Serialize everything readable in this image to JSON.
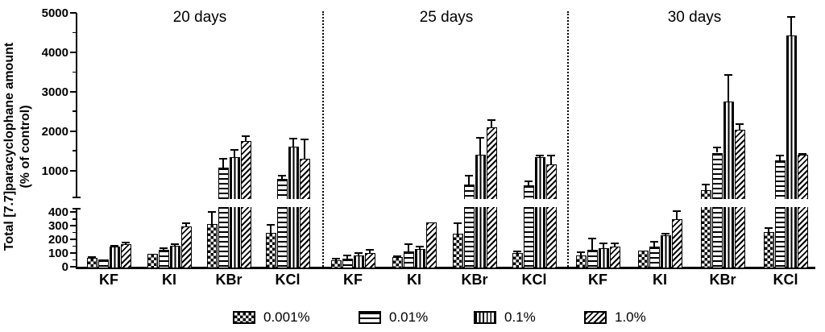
{
  "chart_data": {
    "type": "bar",
    "title": "",
    "ylabel_line1": "Total [7.7]paracyclophane amount",
    "ylabel_line2": "(% of control)",
    "axis": {
      "broken": true,
      "lower_segment_range": [
        0,
        430
      ],
      "upper_segment_range": [
        1000,
        5000
      ],
      "lower_ticks": [
        0,
        100,
        200,
        300,
        400
      ],
      "upper_ticks": [
        1000,
        2000,
        3000,
        4000,
        5000
      ],
      "lower_minor_ticks": [
        50,
        150,
        250,
        350
      ],
      "upper_minor_ticks": [
        1500,
        2500,
        3500,
        4500
      ]
    },
    "series_labels": [
      "0.001%",
      "0.01%",
      "0.1%",
      "1.0%"
    ],
    "series_patterns": [
      "checkerboard",
      "horizontal-lines",
      "vertical-lines",
      "diagonal-lines"
    ],
    "legend_position": "bottom",
    "grid": false,
    "bar_color": "#000000",
    "background_color": "#ffffff",
    "panels": [
      {
        "title": "20 days",
        "groups": [
          {
            "label": "KF",
            "values": [
              65,
              55,
              145,
              168
            ],
            "error_tops": [
              72,
              null,
              155,
              177
            ]
          },
          {
            "label": "KI",
            "values": [
              95,
              122,
              155,
              295
            ],
            "error_tops": [
              null,
              133,
              165,
              320
            ]
          },
          {
            "label": "KBr",
            "values": [
              315,
              1080,
              1330,
              1750
            ],
            "error_tops": [
              400,
              1290,
              1520,
              1870
            ]
          },
          {
            "label": "KCl",
            "values": [
              250,
              790,
              1610,
              1290
            ],
            "error_tops": [
              305,
              860,
              1800,
              1780
            ]
          }
        ]
      },
      {
        "title": "25 days",
        "groups": [
          {
            "label": "KF",
            "values": [
              45,
              62,
              82,
              103
            ],
            "error_tops": [
              60,
              85,
              100,
              125
            ]
          },
          {
            "label": "KI",
            "values": [
              70,
              115,
              130,
              325
            ],
            "error_tops": [
              76,
              165,
              150,
              null
            ]
          },
          {
            "label": "KBr",
            "values": [
              240,
              650,
              1400,
              2100
            ],
            "error_tops": [
              320,
              860,
              1830,
              2280
            ]
          },
          {
            "label": "KCl",
            "values": [
              100,
              620,
              1330,
              1150
            ],
            "error_tops": [
              115,
              720,
              1380,
              1370
            ]
          }
        ]
      },
      {
        "title": "30 days",
        "groups": [
          {
            "label": "KF",
            "values": [
              80,
              125,
              135,
              145
            ],
            "error_tops": [
              105,
              205,
              170,
              170
            ]
          },
          {
            "label": "KI",
            "values": [
              120,
              145,
              228,
              350
            ],
            "error_tops": [
              null,
              182,
              243,
              405
            ]
          },
          {
            "label": "KBr",
            "values": [
              490,
              1450,
              2750,
              2030
            ],
            "error_tops": [
              640,
              1590,
              3430,
              2170
            ]
          },
          {
            "label": "KCl",
            "values": [
              255,
              1250,
              4420,
              1390
            ],
            "error_tops": [
              285,
              1380,
              4900,
              1420
            ]
          }
        ]
      }
    ]
  }
}
